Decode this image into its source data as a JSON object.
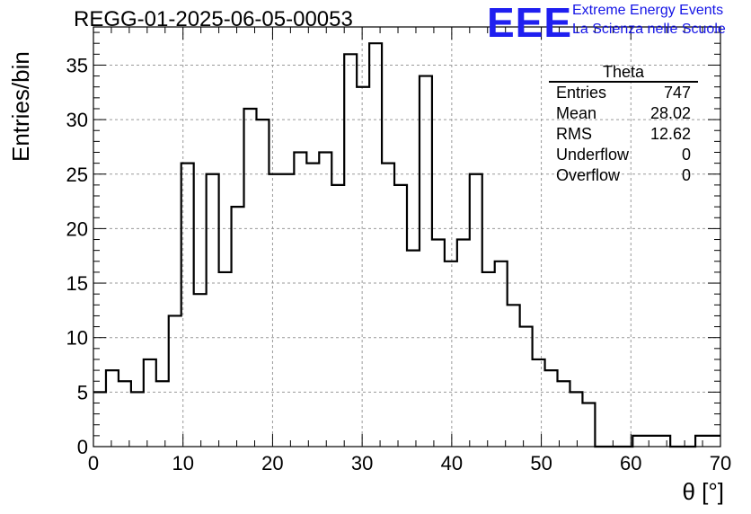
{
  "title": "REGG-01-2025-06-05-00053",
  "logo": {
    "mark": "EEE",
    "line1": "Extreme Energy Events",
    "line2": "La Scienza nelle Scuole",
    "color": "#1f1ff0"
  },
  "stats_box": {
    "title": "Theta",
    "rows": [
      {
        "label": "Entries",
        "value": "747"
      },
      {
        "label": "Mean",
        "value": "28.02"
      },
      {
        "label": "RMS",
        "value": "12.62"
      },
      {
        "label": "Underflow",
        "value": "0"
      },
      {
        "label": "Overflow",
        "value": "0"
      }
    ]
  },
  "chart_data": {
    "type": "bar",
    "style": "step-histogram",
    "title": "REGG-01-2025-06-05-00053",
    "xlabel": "θ [°]",
    "ylabel": "Entries/bin",
    "xlim": [
      0,
      70
    ],
    "ylim": [
      0,
      38.5
    ],
    "bin_width": 1.4,
    "bin_start": 0,
    "values": [
      5,
      7,
      6,
      5,
      8,
      6,
      12,
      26,
      14,
      25,
      16,
      22,
      31,
      30,
      25,
      25,
      27,
      26,
      27,
      24,
      36,
      33,
      37,
      26,
      24,
      18,
      34,
      19,
      17,
      19,
      25,
      16,
      17,
      13,
      11,
      8,
      7,
      6,
      5,
      4,
      0,
      0,
      0,
      1,
      1,
      1,
      0,
      0,
      1,
      1
    ],
    "xticks": [
      0,
      10,
      20,
      30,
      40,
      50,
      60,
      70
    ],
    "yticks": [
      0,
      5,
      10,
      15,
      20,
      25,
      30,
      35
    ],
    "grid": true,
    "line_color": "#000000"
  }
}
